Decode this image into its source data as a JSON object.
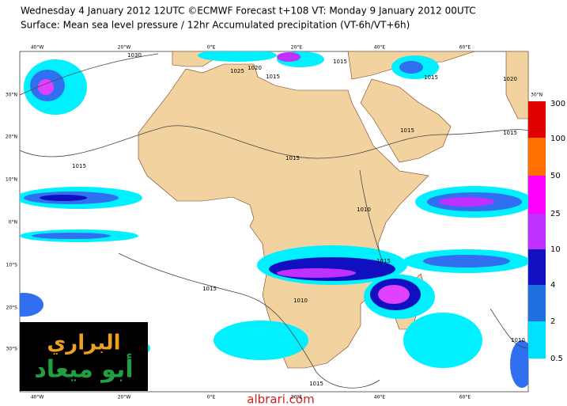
{
  "header": {
    "line1": "Wednesday 4 January 2012 12UTC ©ECMWF Forecast t+108 VT: Monday 9 January 2012 00UTC",
    "line2": "Surface: Mean sea level pressure / 12hr Accumulated precipitation (VT-6h/VT+6h)"
  },
  "map": {
    "lon_labels": [
      "40°W",
      "20°W",
      "0°E",
      "20°E",
      "40°E",
      "60°E"
    ],
    "lat_labels": [
      "30°N",
      "20°N",
      "10°N",
      "0°N",
      "10°S",
      "20°S",
      "30°S"
    ],
    "right_lat_label": "30°N",
    "isobar_labels": [
      "1030",
      "1025",
      "1020",
      "1015",
      "1015",
      "1015",
      "1020",
      "1015",
      "1015",
      "1015",
      "1015",
      "1010",
      "1015",
      "1010",
      "1015",
      "1015",
      "1010"
    ]
  },
  "colorbar": {
    "labels": [
      300,
      100,
      50,
      25,
      10,
      4,
      2,
      0.5
    ]
  },
  "logo": {
    "line1": "البراري",
    "line2": "أبو ميعاد"
  },
  "watermark": "albrari.com"
}
